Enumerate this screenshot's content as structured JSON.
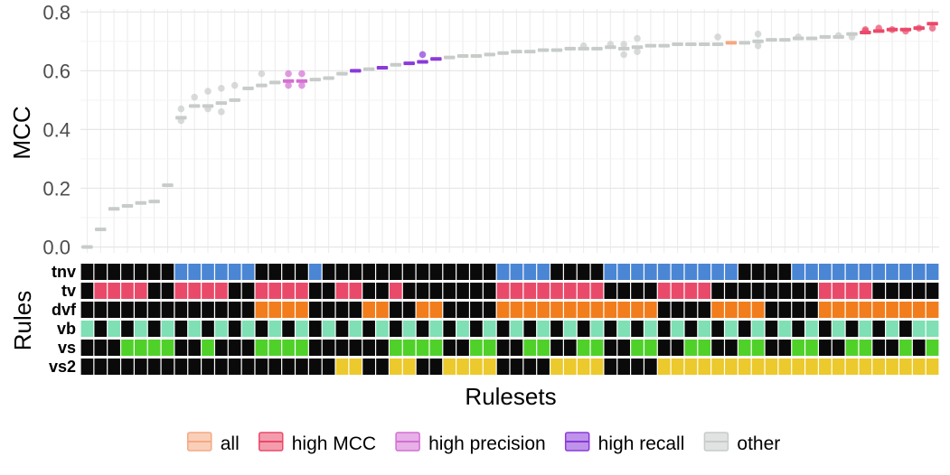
{
  "chart_data": {
    "type": "scatter",
    "ylabel": "MCC",
    "xlabel": "Rulesets",
    "rules_label": "Rules",
    "ylim": [
      -0.02,
      0.81
    ],
    "yticks": [
      "0.0",
      "0.2",
      "0.4",
      "0.6",
      "0.8"
    ],
    "ytick_values": [
      0,
      0.2,
      0.4,
      0.6,
      0.8
    ],
    "grid": true,
    "legend_position": "bottom",
    "groups": [
      {
        "name": "all",
        "color": "#f5a882"
      },
      {
        "name": "high MCC",
        "color": "#ea4a6a"
      },
      {
        "name": "high precision",
        "color": "#d36fd3"
      },
      {
        "name": "high recall",
        "color": "#8a3ad9"
      },
      {
        "name": "other",
        "color": "#c7ccc9"
      }
    ],
    "y": [
      0.0,
      0.06,
      0.13,
      0.14,
      0.15,
      0.155,
      0.21,
      0.44,
      0.48,
      0.48,
      0.49,
      0.5,
      0.54,
      0.55,
      0.56,
      0.565,
      0.565,
      0.57,
      0.575,
      0.59,
      0.6,
      0.605,
      0.61,
      0.62,
      0.625,
      0.63,
      0.64,
      0.645,
      0.65,
      0.65,
      0.655,
      0.66,
      0.665,
      0.665,
      0.67,
      0.67,
      0.675,
      0.675,
      0.675,
      0.68,
      0.675,
      0.68,
      0.685,
      0.685,
      0.69,
      0.69,
      0.69,
      0.69,
      0.695,
      0.695,
      0.7,
      0.705,
      0.705,
      0.71,
      0.71,
      0.715,
      0.715,
      0.725,
      0.73,
      0.735,
      0.74,
      0.74,
      0.745,
      0.76
    ],
    "group": [
      "other",
      "other",
      "other",
      "other",
      "other",
      "other",
      "other",
      "other",
      "other",
      "other",
      "other",
      "other",
      "other",
      "other",
      "other",
      "high precision",
      "high precision",
      "other",
      "other",
      "other",
      "high recall",
      "other",
      "high recall",
      "other",
      "high recall",
      "high recall",
      "high recall",
      "other",
      "other",
      "other",
      "other",
      "other",
      "other",
      "other",
      "other",
      "other",
      "other",
      "other",
      "other",
      "other",
      "other",
      "other",
      "other",
      "other",
      "other",
      "other",
      "other",
      "other",
      "all",
      "other",
      "other",
      "other",
      "other",
      "other",
      "other",
      "other",
      "other",
      "other",
      "high MCC",
      "high MCC",
      "high MCC",
      "high MCC",
      "high MCC",
      "high MCC"
    ],
    "outliers": [
      {
        "i": 7,
        "v": [
          0.43,
          0.47
        ]
      },
      {
        "i": 8,
        "v": [
          0.51
        ]
      },
      {
        "i": 9,
        "v": [
          0.47,
          0.53
        ]
      },
      {
        "i": 10,
        "v": [
          0.46,
          0.54
        ]
      },
      {
        "i": 11,
        "v": [
          0.55
        ]
      },
      {
        "i": 13,
        "v": [
          0.59
        ]
      },
      {
        "i": 15,
        "v": [
          0.59,
          0.55
        ]
      },
      {
        "i": 16,
        "v": [
          0.59,
          0.55
        ]
      },
      {
        "i": 25,
        "v": [
          0.655
        ]
      },
      {
        "i": 37,
        "v": [
          0.685
        ]
      },
      {
        "i": 39,
        "v": [
          0.69
        ]
      },
      {
        "i": 40,
        "v": [
          0.655,
          0.69
        ]
      },
      {
        "i": 41,
        "v": [
          0.71,
          0.665
        ]
      },
      {
        "i": 47,
        "v": [
          0.715
        ]
      },
      {
        "i": 50,
        "v": [
          0.685,
          0.725
        ]
      },
      {
        "i": 53,
        "v": [
          0.715
        ]
      },
      {
        "i": 56,
        "v": [
          0.72
        ]
      },
      {
        "i": 57,
        "v": [
          0.715
        ]
      },
      {
        "i": 58,
        "v": [
          0.74,
          0.735
        ]
      },
      {
        "i": 59,
        "v": [
          0.745
        ]
      },
      {
        "i": 60,
        "v": [
          0.74
        ]
      },
      {
        "i": 61,
        "v": [
          0.735
        ]
      },
      {
        "i": 62,
        "v": [
          0.745
        ]
      },
      {
        "i": 63,
        "v": [
          0.745
        ]
      }
    ],
    "rules": [
      {
        "name": "tnv",
        "on_color": "#4a86d4",
        "on": [
          7,
          8,
          9,
          10,
          11,
          12,
          17,
          31,
          32,
          33,
          34,
          39,
          40,
          41,
          42,
          43,
          44,
          45,
          46,
          47,
          48,
          53,
          54,
          55,
          56,
          57,
          58,
          59,
          60,
          61,
          62,
          63
        ]
      },
      {
        "name": "tv",
        "on_color": "#ea4a6a",
        "on": [
          1,
          2,
          3,
          4,
          7,
          8,
          9,
          10,
          13,
          14,
          15,
          16,
          19,
          20,
          23,
          31,
          32,
          33,
          34,
          35,
          36,
          37,
          38,
          43,
          44,
          45,
          46,
          55,
          56,
          57,
          58
        ]
      },
      {
        "name": "dvf",
        "on_color": "#f27d1c",
        "on": [
          13,
          14,
          15,
          16,
          21,
          22,
          25,
          26,
          31,
          32,
          33,
          34,
          35,
          36,
          37,
          38,
          39,
          40,
          41,
          42,
          47,
          48,
          49,
          50,
          55,
          56,
          57,
          58,
          59,
          60,
          61,
          62,
          63
        ]
      },
      {
        "name": "vb",
        "on_color": "#7ee0b4",
        "on": [
          0,
          2,
          4,
          6,
          8,
          10,
          12,
          14,
          16,
          18,
          20,
          22,
          24,
          26,
          28,
          30,
          32,
          34,
          36,
          38,
          40,
          42,
          44,
          46,
          48,
          50,
          52,
          54,
          56,
          58,
          60,
          62,
          63
        ]
      },
      {
        "name": "vs",
        "on_color": "#4fd12a",
        "on": [
          3,
          4,
          5,
          6,
          9,
          13,
          14,
          15,
          16,
          23,
          24,
          25,
          26,
          29,
          30,
          33,
          34,
          37,
          38,
          41,
          42,
          45,
          46,
          49,
          50,
          53,
          54,
          57,
          58,
          61,
          63
        ]
      },
      {
        "name": "vs2",
        "on_color": "#ecc92c",
        "on": [
          19,
          20,
          23,
          24,
          27,
          28,
          29,
          30,
          35,
          36,
          37,
          38,
          43,
          44,
          45,
          46,
          47,
          48,
          49,
          50,
          51,
          52,
          53,
          54,
          55,
          56,
          57,
          58,
          59,
          60,
          61,
          62,
          63
        ]
      }
    ]
  }
}
